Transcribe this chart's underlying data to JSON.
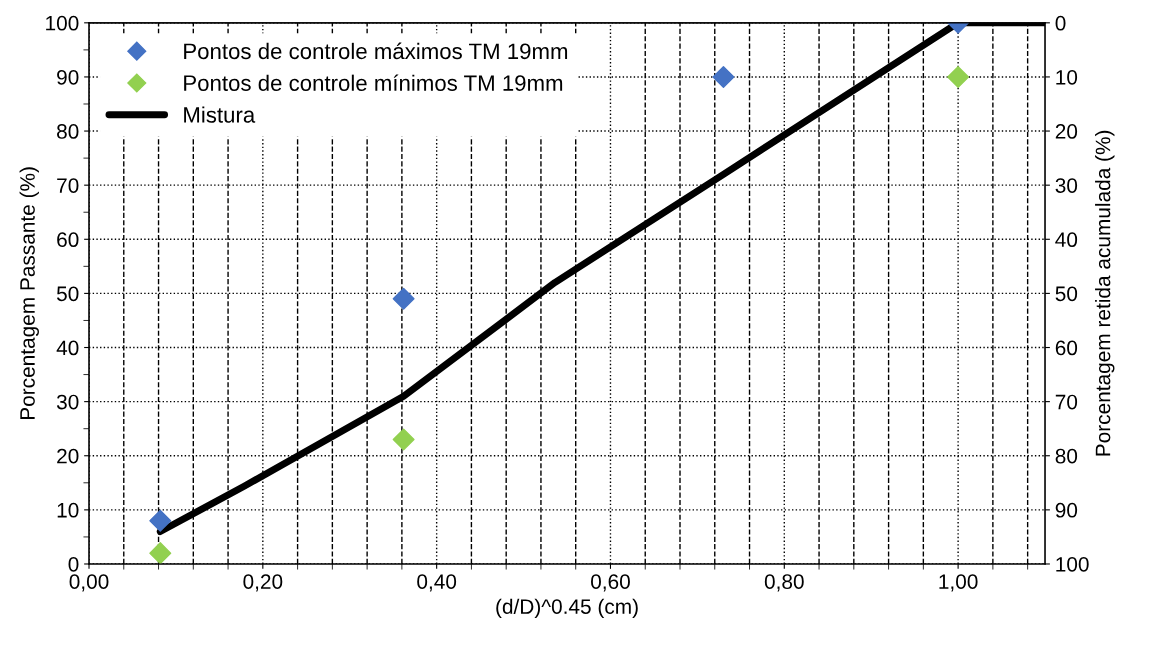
{
  "chart_data": {
    "type": "scatter",
    "xlabel": "(d/D)^0.45 (cm)",
    "ylabel": "Porcentagem Passante (%)",
    "y2label": "Porcentagem retida acumulada (%)",
    "series": [
      {
        "name": "Pontos de controle máximos TM 19mm",
        "color": "#4472c4",
        "marker": "diamond",
        "x": [
          0.082,
          0.362,
          0.73,
          1.0
        ],
        "values": [
          8,
          49,
          90,
          100
        ]
      },
      {
        "name": "Pontos de controle mínimos TM 19mm",
        "color": "#92d050",
        "marker": "diamond",
        "x": [
          0.082,
          0.362,
          1.0
        ],
        "values": [
          2,
          23,
          90
        ]
      },
      {
        "name": "Mistura",
        "type": "line",
        "color": "#000000",
        "marker": "none",
        "line_style": "solid",
        "x": [
          0.082,
          0.179,
          0.362,
          0.536,
          0.73,
          1.0,
          1.1
        ],
        "values": [
          6,
          14.4,
          31,
          52,
          72,
          100,
          100
        ]
      }
    ],
    "xlim": [
      0,
      1.1
    ],
    "xticks": [
      {
        "value": 0,
        "label": "0,00"
      },
      {
        "value": 0.2,
        "label": "0,20"
      },
      {
        "value": 0.4,
        "label": "0,40"
      },
      {
        "value": 0.6,
        "label": "0,60"
      },
      {
        "value": 0.8,
        "label": "0,80"
      },
      {
        "value": 1.0,
        "label": "1,00"
      }
    ],
    "ylim": [
      0,
      100
    ],
    "yticks": [
      0,
      10,
      20,
      30,
      40,
      50,
      60,
      70,
      80,
      90,
      100
    ],
    "y2lim": [
      100,
      0
    ],
    "y2ticks": [
      0,
      10,
      20,
      30,
      40,
      50,
      60,
      70,
      80,
      90,
      100
    ],
    "grid": true,
    "legend": "top left"
  }
}
